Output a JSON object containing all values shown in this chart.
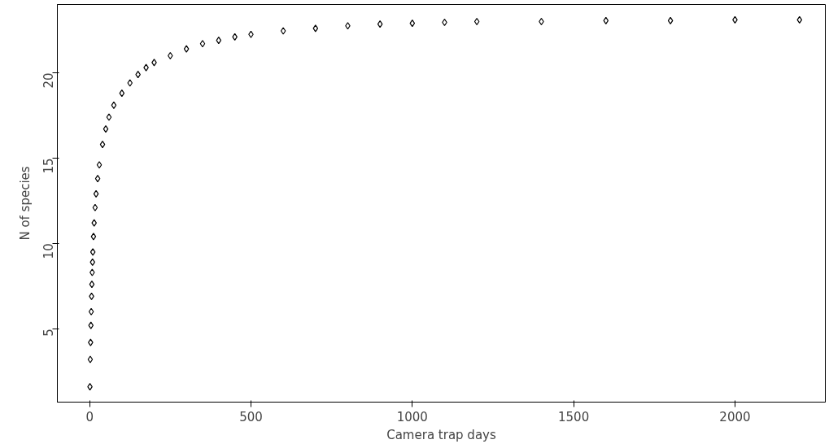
{
  "chart_data": {
    "type": "scatter",
    "xlabel": "Camera trap days",
    "ylabel": "N of species",
    "x": [
      1,
      2,
      3,
      4,
      5,
      6,
      7,
      8,
      9,
      10,
      12,
      14,
      17,
      20,
      25,
      30,
      40,
      50,
      60,
      75,
      100,
      125,
      150,
      175,
      200,
      250,
      300,
      350,
      400,
      450,
      500,
      600,
      700,
      800,
      900,
      1000,
      1100,
      1200,
      1400,
      1600,
      1800,
      2000,
      2200
    ],
    "values": [
      1.6,
      3.2,
      4.2,
      5.2,
      6.0,
      6.9,
      7.6,
      8.3,
      8.9,
      9.5,
      10.4,
      11.2,
      12.1,
      12.9,
      13.8,
      14.6,
      15.8,
      16.7,
      17.4,
      18.1,
      18.8,
      19.4,
      19.9,
      20.3,
      20.6,
      21.0,
      21.4,
      21.7,
      21.9,
      22.1,
      22.25,
      22.45,
      22.6,
      22.75,
      22.85,
      22.9,
      22.95,
      23.0,
      23.0,
      23.05,
      23.05,
      23.1,
      23.1
    ],
    "color": "#000000",
    "marker": "diamond",
    "grid": false,
    "xlim": [
      -100,
      2280
    ],
    "ylim": [
      0.7,
      24
    ],
    "xticks": [
      0,
      500,
      1000,
      1500,
      2000
    ],
    "yticks": [
      5,
      10,
      15,
      20
    ]
  }
}
